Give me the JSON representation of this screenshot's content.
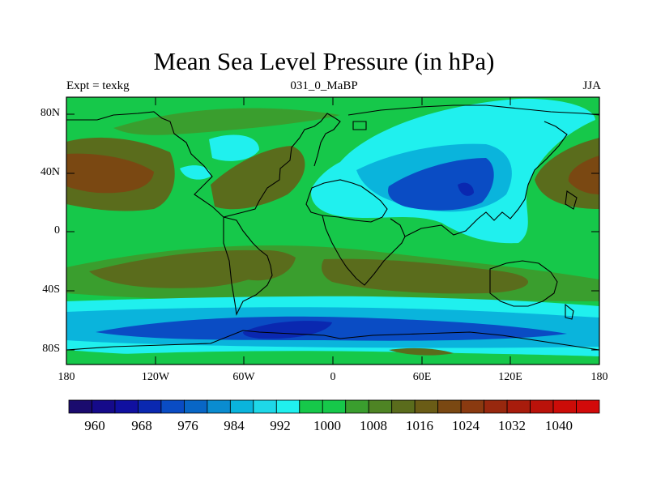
{
  "title": "Mean Sea Level Pressure (in hPa)",
  "subtitle_left": "Expt = texkg",
  "subtitle_center": "031_0_MaBP",
  "subtitle_right": "JJA",
  "lat_labels": [
    "80N",
    "40N",
    "0",
    "40S",
    "80S"
  ],
  "lon_labels": [
    "180",
    "120W",
    "60W",
    "0",
    "60E",
    "120E",
    "180"
  ],
  "colorbar": {
    "labels": [
      "960",
      "968",
      "976",
      "984",
      "992",
      "1000",
      "1008",
      "1016",
      "1024",
      "1032",
      "1040"
    ],
    "colors": [
      "#1a0b6e",
      "#150a8a",
      "#1010a0",
      "#0a28b0",
      "#0a4cc4",
      "#0866c6",
      "#0a8cd0",
      "#0ab4dc",
      "#1ed8e8",
      "#20f0ee",
      "#16c84a",
      "#16c84a",
      "#3a9e2e",
      "#4e8424",
      "#5a6c1c",
      "#6a5c16",
      "#7a4812",
      "#8a3a10",
      "#98280e",
      "#a81c0c",
      "#ba120a",
      "#cc0c08",
      "#d20a0a"
    ]
  },
  "palette": {
    "ocean_base": "#16c84a",
    "low_1": "#20f0ee",
    "low_2": "#0ab4dc",
    "low_3": "#0a4cc4",
    "low_4": "#0a28b0",
    "high_1": "#3a9e2e",
    "high_2": "#5a6c1c",
    "high_3": "#7a4812"
  }
}
